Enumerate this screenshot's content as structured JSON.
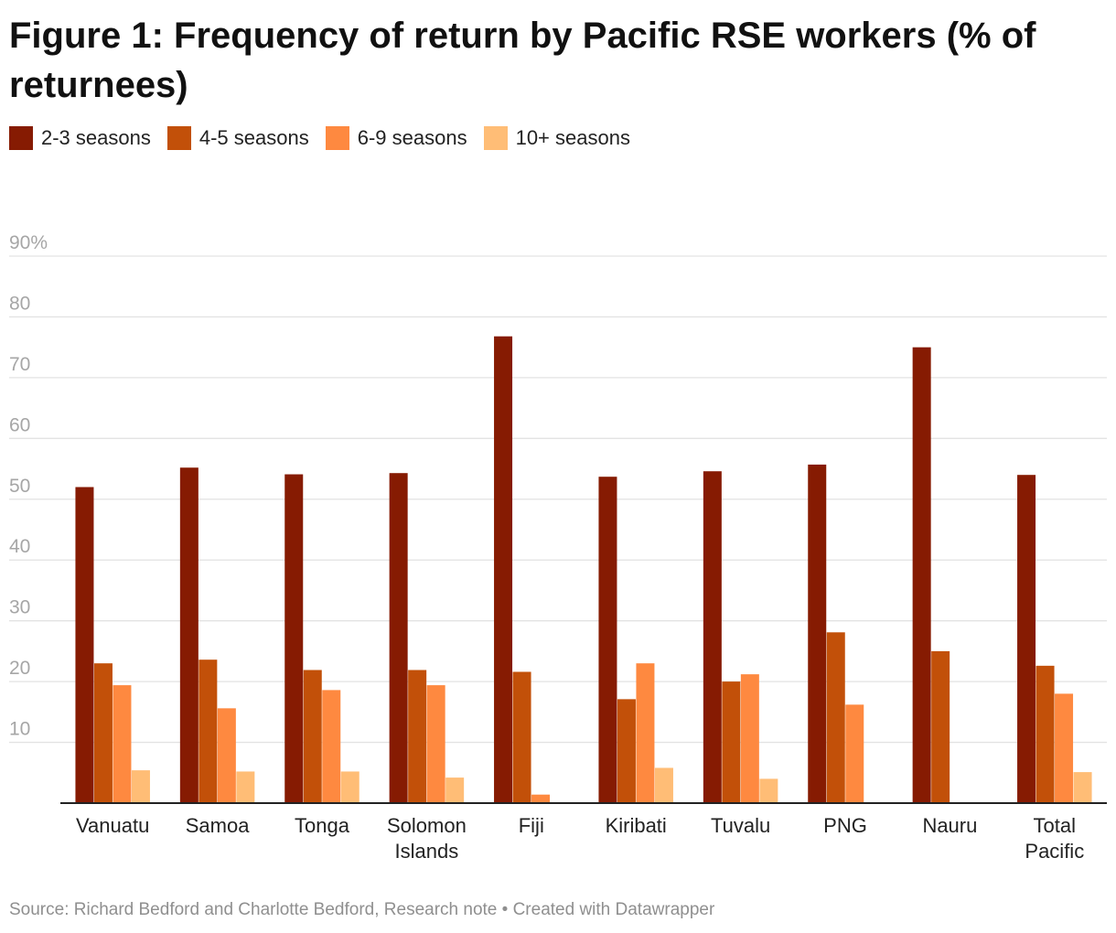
{
  "title": "Figure 1: Frequency of return by Pacific RSE workers (% of returnees)",
  "source": "Source: Richard Bedford and Charlotte Bedford, Research note • Created with Datawrapper",
  "chart_data": {
    "type": "bar",
    "title": "Figure 1: Frequency of return by Pacific RSE workers (% of returnees)",
    "categories": [
      [
        "Vanuatu"
      ],
      [
        "Samoa"
      ],
      [
        "Tonga"
      ],
      [
        "Solomon",
        "Islands"
      ],
      [
        "Fiji"
      ],
      [
        "Kiribati"
      ],
      [
        "Tuvalu"
      ],
      [
        "PNG"
      ],
      [
        "Nauru"
      ],
      [
        "Total",
        "Pacific"
      ]
    ],
    "series": [
      {
        "name": "2-3 seasons",
        "color": "#861b02",
        "values": [
          52,
          55.2,
          54.1,
          54.3,
          76.8,
          53.7,
          54.6,
          55.7,
          75,
          54
        ]
      },
      {
        "name": "4-5 seasons",
        "color": "#c25009",
        "values": [
          23,
          23.6,
          21.9,
          21.9,
          21.6,
          17.1,
          20,
          28.1,
          25,
          22.6
        ]
      },
      {
        "name": "6-9 seasons",
        "color": "#fe8940",
        "values": [
          19.4,
          15.6,
          18.6,
          19.4,
          1.4,
          23,
          21.2,
          16.2,
          0,
          18
        ]
      },
      {
        "name": "10+ seasons",
        "color": "#ffbd76",
        "values": [
          5.4,
          5.2,
          5.2,
          4.2,
          0,
          5.8,
          4,
          0,
          0,
          5.1
        ]
      }
    ],
    "ylim": [
      0,
      90
    ],
    "yticks": [
      0,
      10,
      20,
      30,
      40,
      50,
      60,
      70,
      80,
      90
    ],
    "ytick_labels": [
      "",
      "10",
      "20",
      "30",
      "40",
      "50",
      "60",
      "70",
      "80",
      "90%"
    ],
    "grid": true,
    "legend": "top-left",
    "xlabel": "",
    "ylabel": ""
  }
}
